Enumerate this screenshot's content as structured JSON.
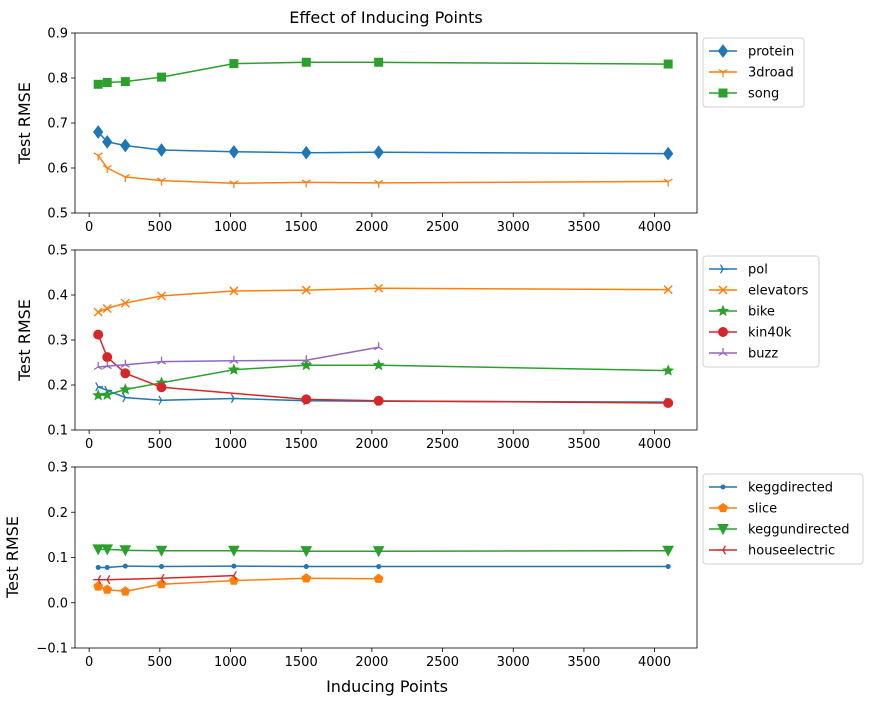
{
  "figure": {
    "title": "Effect of Inducing Points",
    "xlabel": "Inducing Points"
  },
  "chart_data": [
    {
      "type": "line",
      "title": "Effect of Inducing Points",
      "xlabel": "",
      "ylabel": "Test RMSE",
      "xlim": [
        -100,
        4300
      ],
      "ylim": [
        0.5,
        0.9
      ],
      "xticks": [
        0,
        500,
        1000,
        1500,
        2000,
        2500,
        3000,
        3500,
        4000
      ],
      "yticks": [
        0.5,
        0.6,
        0.7,
        0.8,
        0.9
      ],
      "ytick_labels": [
        "0.5",
        "0.6",
        "0.7",
        "0.8",
        "0.9"
      ],
      "legend_position": "outside-right-top",
      "series": [
        {
          "name": "protein",
          "color": "#1f77b4",
          "marker": "diamond",
          "x": [
            64,
            128,
            256,
            512,
            1024,
            1536,
            2048,
            4096
          ],
          "y": [
            0.68,
            0.658,
            0.65,
            0.64,
            0.636,
            0.634,
            0.635,
            0.632
          ]
        },
        {
          "name": "3droad",
          "color": "#ff7f0e",
          "marker": "tri_down",
          "x": [
            64,
            128,
            256,
            512,
            1024,
            1536,
            2048,
            4096
          ],
          "y": [
            0.628,
            0.6,
            0.58,
            0.572,
            0.566,
            0.568,
            0.567,
            0.57
          ]
        },
        {
          "name": "song",
          "color": "#2ca02c",
          "marker": "square",
          "x": [
            64,
            128,
            256,
            512,
            1024,
            1536,
            2048,
            4096
          ],
          "y": [
            0.786,
            0.79,
            0.792,
            0.802,
            0.832,
            0.835,
            0.835,
            0.831
          ]
        }
      ]
    },
    {
      "type": "line",
      "title": "",
      "xlabel": "",
      "ylabel": "Test RMSE",
      "xlim": [
        -100,
        4300
      ],
      "ylim": [
        0.1,
        0.5
      ],
      "xticks": [
        0,
        500,
        1000,
        1500,
        2000,
        2500,
        3000,
        3500,
        4000
      ],
      "yticks": [
        0.1,
        0.2,
        0.3,
        0.4,
        0.5
      ],
      "ytick_labels": [
        "0.1",
        "0.2",
        "0.3",
        "0.4",
        "0.5"
      ],
      "legend_position": "outside-right-top",
      "series": [
        {
          "name": "pol",
          "color": "#1f77b4",
          "marker": "tri_right",
          "x": [
            64,
            128,
            256,
            512,
            1024,
            1536,
            2048,
            4096
          ],
          "y": [
            0.196,
            0.188,
            0.172,
            0.166,
            0.17,
            0.165,
            0.164,
            0.162
          ]
        },
        {
          "name": "elevators",
          "color": "#ff7f0e",
          "marker": "x",
          "x": [
            64,
            128,
            256,
            512,
            1024,
            1536,
            2048,
            4096
          ],
          "y": [
            0.362,
            0.37,
            0.382,
            0.398,
            0.409,
            0.411,
            0.415,
            0.412
          ]
        },
        {
          "name": "bike",
          "color": "#2ca02c",
          "marker": "star",
          "x": [
            64,
            128,
            256,
            512,
            1024,
            1536,
            2048,
            4096
          ],
          "y": [
            0.177,
            0.178,
            0.19,
            0.205,
            0.234,
            0.244,
            0.244,
            0.232
          ]
        },
        {
          "name": "kin40k",
          "color": "#d62728",
          "marker": "circle",
          "x": [
            64,
            128,
            256,
            512,
            1536,
            2048,
            4096
          ],
          "y": [
            0.312,
            0.262,
            0.226,
            0.195,
            0.168,
            0.165,
            0.16
          ]
        },
        {
          "name": "buzz",
          "color": "#9467bd",
          "marker": "tri_up",
          "x": [
            64,
            128,
            256,
            512,
            1024,
            1536,
            2048
          ],
          "y": [
            0.24,
            0.242,
            0.245,
            0.252,
            0.254,
            0.255,
            0.284
          ]
        }
      ]
    },
    {
      "type": "line",
      "title": "",
      "xlabel": "Inducing Points",
      "ylabel": "Test RMSE",
      "xlim": [
        -100,
        4300
      ],
      "ylim": [
        -0.1,
        0.3
      ],
      "xticks": [
        0,
        500,
        1000,
        1500,
        2000,
        2500,
        3000,
        3500,
        4000
      ],
      "yticks": [
        -0.1,
        0.0,
        0.1,
        0.2,
        0.3
      ],
      "ytick_labels": [
        "−0.1",
        "0.0",
        "0.1",
        "0.2",
        "0.3"
      ],
      "legend_position": "outside-right-top",
      "series": [
        {
          "name": "keggdirected",
          "color": "#1f77b4",
          "marker": "point",
          "x": [
            64,
            128,
            256,
            512,
            1024,
            1536,
            2048,
            4096
          ],
          "y": [
            0.078,
            0.078,
            0.081,
            0.08,
            0.081,
            0.08,
            0.08,
            0.08
          ]
        },
        {
          "name": "slice",
          "color": "#ff7f0e",
          "marker": "pentagon",
          "x": [
            64,
            128,
            256,
            512,
            1024,
            1536,
            2048
          ],
          "y": [
            0.036,
            0.029,
            0.025,
            0.041,
            0.049,
            0.054,
            0.053
          ]
        },
        {
          "name": "keggundirected",
          "color": "#2ca02c",
          "marker": "triangle_down",
          "x": [
            64,
            128,
            256,
            512,
            1024,
            1536,
            2048,
            4096
          ],
          "y": [
            0.118,
            0.118,
            0.116,
            0.115,
            0.115,
            0.114,
            0.114,
            0.115
          ]
        },
        {
          "name": "houseelectric",
          "color": "#d62728",
          "marker": "tri_left",
          "x": [
            64,
            128,
            512,
            1024
          ],
          "y": [
            0.051,
            0.051,
            0.054,
            0.06
          ]
        }
      ]
    }
  ]
}
